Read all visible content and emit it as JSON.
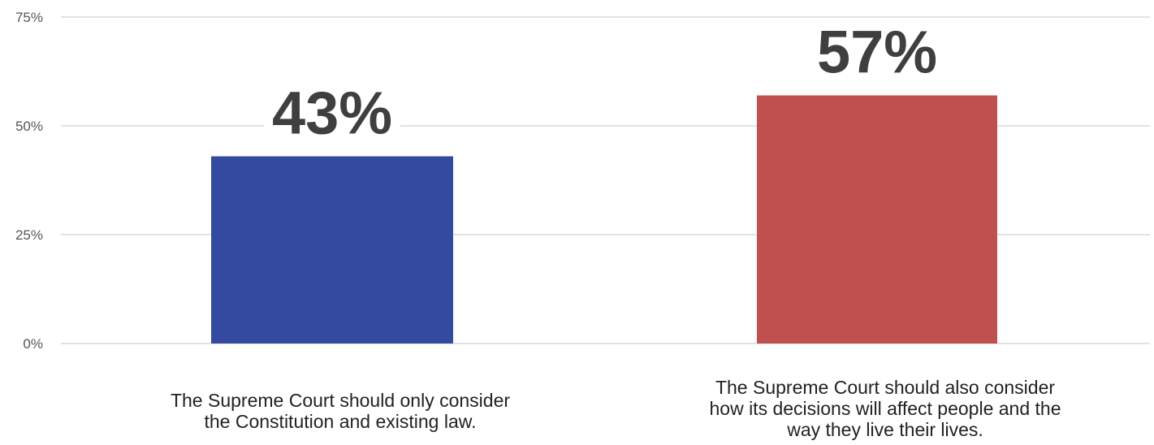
{
  "chart_data": {
    "type": "bar",
    "categories": [
      "The Supreme Court should only consider\nthe Constitution and existing law.",
      "The Supreme Court should also consider\nhow its decisions will affect people and the\nway they live their lives."
    ],
    "values": [
      43,
      57
    ],
    "value_labels": [
      "43%",
      "57%"
    ],
    "bar_colors": [
      "#344a9f",
      "#c0504d"
    ],
    "y_ticks": [
      0,
      25,
      50,
      75
    ],
    "y_tick_labels": [
      "0%",
      "25%",
      "50%",
      "75%"
    ],
    "ylim": [
      0,
      75
    ],
    "grid": true,
    "legend": "none",
    "title": "",
    "xlabel": "",
    "ylabel": ""
  }
}
